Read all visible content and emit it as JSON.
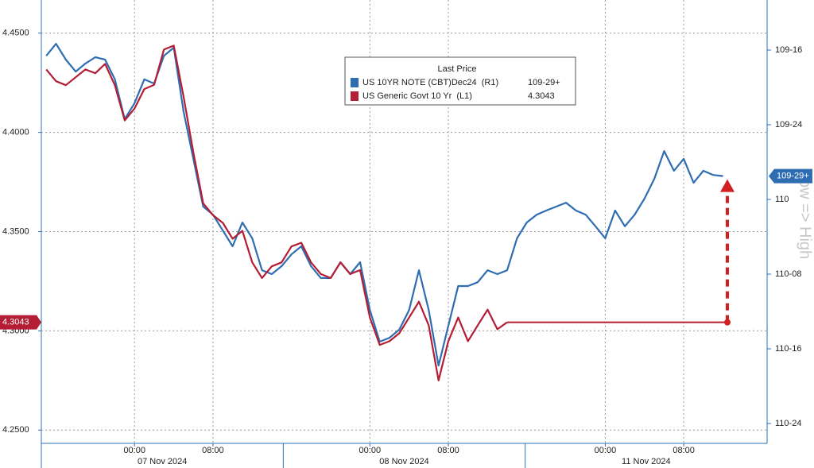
{
  "chart_data": {
    "type": "line",
    "y2label": "Low => High",
    "legend_title": "Last Price",
    "categories": [
      null,
      null,
      null,
      null,
      null,
      null,
      null,
      null,
      null,
      "00:00",
      null,
      null,
      null,
      null,
      null,
      null,
      null,
      "08:00",
      null,
      null,
      null,
      null,
      null,
      null,
      null,
      null,
      null,
      null,
      null,
      null,
      null,
      null,
      null,
      "00:00",
      null,
      null,
      null,
      null,
      null,
      null,
      null,
      "08:00",
      null,
      null,
      null,
      null,
      null,
      null,
      null,
      null,
      null,
      null,
      null,
      null,
      null,
      null,
      null,
      "00:00",
      null,
      null,
      null,
      null,
      null,
      null,
      null,
      "08:00",
      null,
      null,
      null,
      null,
      null,
      null,
      null,
      null
    ],
    "dates": [
      "07 Nov 2024",
      "08 Nov 2024",
      "11 Nov 2024"
    ],
    "ylim": [
      4.2433,
      4.4667
    ],
    "yticks": [
      {
        "value": 4.25,
        "label": "4.2500"
      },
      {
        "value": 4.3,
        "label": "4.3000"
      },
      {
        "value": 4.35,
        "label": "4.3500"
      },
      {
        "value": 4.4,
        "label": "4.4000"
      },
      {
        "value": 4.45,
        "label": "4.4500"
      }
    ],
    "y2lim": [
      110.8165,
      109.3324
    ],
    "y2ticks": [
      {
        "value": 109.5,
        "label": "109-16"
      },
      {
        "value": 109.75,
        "label": "109-24"
      },
      {
        "value": 110,
        "label": "110"
      },
      {
        "value": 110.25,
        "label": "110-08"
      },
      {
        "value": 110.5,
        "label": "110-16"
      },
      {
        "value": 110.75,
        "label": "110-24"
      }
    ],
    "grid": true,
    "series": [
      {
        "name": "US 10YR NOTE (CBT)Dec24  (R1)",
        "color": "#2f6db3",
        "axis": "y2",
        "last_label": "109-29+",
        "values": [
          109.519,
          109.479,
          109.532,
          109.572,
          109.545,
          109.524,
          109.532,
          109.598,
          109.731,
          109.678,
          109.598,
          109.612,
          109.519,
          109.492,
          109.705,
          109.864,
          110.024,
          110.051,
          110.104,
          110.157,
          110.077,
          110.13,
          110.237,
          110.25,
          110.223,
          110.184,
          110.157,
          110.223,
          110.263,
          110.263,
          110.21,
          110.25,
          110.21,
          110.37,
          110.476,
          110.463,
          110.436,
          110.37,
          110.237,
          110.37,
          110.556,
          110.423,
          110.29,
          110.29,
          110.277,
          110.237,
          110.25,
          110.237,
          110.13,
          110.077,
          110.051,
          110.037,
          110.024,
          110.011,
          110.037,
          110.051,
          110.09,
          110.13,
          110.037,
          110.09,
          110.051,
          109.997,
          109.931,
          109.838,
          109.904,
          109.864,
          109.944,
          109.904,
          109.918,
          109.921875,
          null,
          null,
          null,
          null
        ]
      },
      {
        "name": "US Generic Govt 10 Yr  (L1)",
        "color": "#b41d33",
        "last_label": "4.3043",
        "values": [
          4.4317,
          4.4258,
          4.4238,
          4.4278,
          4.4317,
          4.4298,
          4.4345,
          4.4238,
          4.406,
          4.412,
          4.4218,
          4.424,
          4.4417,
          4.4437,
          4.418,
          4.39,
          4.3643,
          4.3583,
          4.3544,
          4.3464,
          4.3504,
          4.3345,
          4.3266,
          4.3325,
          4.3345,
          4.3425,
          4.3444,
          4.3345,
          4.3286,
          4.3266,
          4.3345,
          4.3286,
          4.3306,
          4.3067,
          4.2929,
          4.2948,
          4.2988,
          4.3067,
          4.3147,
          4.3028,
          4.275,
          4.2948,
          4.3067,
          4.2948,
          4.3028,
          4.3107,
          4.3008,
          4.3043,
          null,
          null,
          null,
          null,
          null,
          null,
          null,
          null,
          null,
          null,
          null,
          null,
          null,
          null,
          null,
          null,
          null,
          null,
          null,
          null,
          null,
          null,
          null,
          null,
          null,
          null
        ]
      }
    ]
  }
}
